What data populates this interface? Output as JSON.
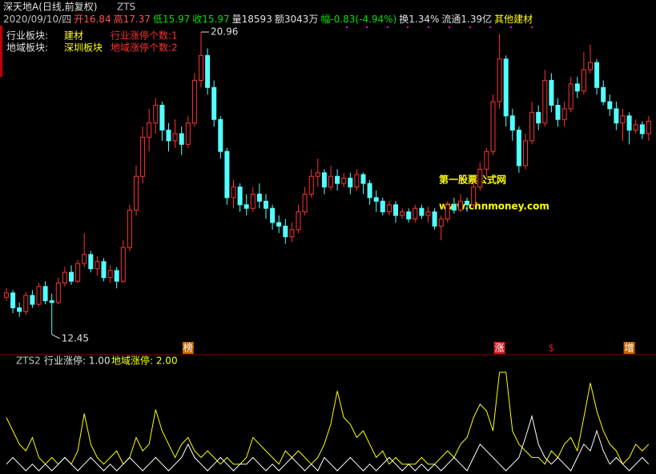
{
  "chart_data": [
    {
      "type": "candlestick",
      "title": "深天地A(日线,前复权)",
      "subtitle": "ZTS",
      "info": [
        {
          "text": "2020/09/10/四",
          "color": "#c0c0c0"
        },
        {
          "text": "开16.84",
          "color": "#ff5050"
        },
        {
          "text": "高17.37",
          "color": "#ff5050"
        },
        {
          "text": "低15.97",
          "color": "#00e000"
        },
        {
          "text": "收15.97",
          "color": "#00e000"
        },
        {
          "text": "量18593",
          "color": "#e0e0e0"
        },
        {
          "text": "额3043万",
          "color": "#e0e0e0"
        },
        {
          "text": "幅-0.83(-4.94%)",
          "color": "#00e000"
        },
        {
          "text": "换1.34%",
          "color": "#e0e0e0"
        },
        {
          "text": "流通1.39亿",
          "color": "#e0e0e0"
        },
        {
          "text": "其他建材",
          "color": "#ffff00"
        }
      ],
      "rows": [
        [
          {
            "text": "行业板块:",
            "color": "#e0e0e0"
          },
          {
            "text": "建材",
            "color": "#ffff00"
          },
          {
            "text": "行业涨停个数:1",
            "color": "#ff3030"
          }
        ],
        [
          {
            "text": "地域板块:",
            "color": "#e0e0e0"
          },
          {
            "text": "深圳板块",
            "color": "#ffff00"
          },
          {
            "text": "地域涨停个数:2",
            "color": "#ff3030"
          }
        ]
      ],
      "watermark": [
        "第一股票公式网",
        "www.chnmoney.com"
      ],
      "markers": [
        {
          "text": "榜",
          "index": 28,
          "color": "#c86400"
        },
        {
          "text": "涨",
          "index": 76,
          "color": "#c82020"
        },
        {
          "text": "$",
          "index": 84,
          "color": "#c82020"
        },
        {
          "text": "增",
          "index": 96,
          "color": "#c86400"
        }
      ],
      "up_color": "#ff3232",
      "down_color": "#54ffff",
      "ylim": [
        11.95,
        21.14
      ],
      "open": [
        13.5,
        13.62,
        13.2,
        13.1,
        13.55,
        13.3,
        13.8,
        13.4,
        13.35,
        13.9,
        14.2,
        13.95,
        14.45,
        14.7,
        14.3,
        14.5,
        14.05,
        14.25,
        13.95,
        14.9,
        15.95,
        16.9,
        18.0,
        18.4,
        18.9,
        18.2,
        17.9,
        18.1,
        17.8,
        18.4,
        19.6,
        20.3,
        19.4,
        18.5,
        17.6,
        16.3,
        16.6,
        16.1,
        16.0,
        16.4,
        16.2,
        16.0,
        15.6,
        15.5,
        15.2,
        15.4,
        15.9,
        16.4,
        16.9,
        17.0,
        16.6,
        16.9,
        16.7,
        16.85,
        16.6,
        16.95,
        16.7,
        16.3,
        16.2,
        15.9,
        16.1,
        15.8,
        15.9,
        15.7,
        16.0,
        15.8,
        15.9,
        15.5,
        15.7,
        16.1,
        15.95,
        16.2,
        16.1,
        16.6,
        17.1,
        17.6,
        19.0,
        20.2,
        18.6,
        18.2,
        17.2,
        17.9,
        18.7,
        18.4,
        19.6,
        18.9,
        18.5,
        18.8,
        19.5,
        19.3,
        19.9,
        20.1,
        19.4,
        19.0,
        18.8,
        18.4,
        18.6,
        18.2,
        18.35,
        18.1
      ],
      "high": [
        13.75,
        13.7,
        13.35,
        13.65,
        13.7,
        13.9,
        13.95,
        13.6,
        14.05,
        14.35,
        14.4,
        14.55,
        15.3,
        14.8,
        14.65,
        14.6,
        14.4,
        14.35,
        15.1,
        16.1,
        17.2,
        18.3,
        18.8,
        19.1,
        19.0,
        18.4,
        18.5,
        18.3,
        18.6,
        19.8,
        20.96,
        20.5,
        19.6,
        18.6,
        17.7,
        16.8,
        16.7,
        16.4,
        16.6,
        16.7,
        16.4,
        16.1,
        15.8,
        15.7,
        15.6,
        16.1,
        16.6,
        17.1,
        17.4,
        17.1,
        17.2,
        17.1,
        17.0,
        17.0,
        17.1,
        17.0,
        16.8,
        16.5,
        16.3,
        16.2,
        16.2,
        16.0,
        16.0,
        16.1,
        16.1,
        16.05,
        16.0,
        15.8,
        16.2,
        16.3,
        16.4,
        16.3,
        16.8,
        17.3,
        17.7,
        19.2,
        20.9,
        20.3,
        18.8,
        18.3,
        18.1,
        19.0,
        18.9,
        19.9,
        19.8,
        19.1,
        19.0,
        19.7,
        19.7,
        20.4,
        20.6,
        20.2,
        19.6,
        19.2,
        19.0,
        18.8,
        18.7,
        18.5,
        18.45,
        18.6
      ],
      "low": [
        13.4,
        13.05,
        12.95,
        13.0,
        13.2,
        13.25,
        13.3,
        12.45,
        13.3,
        13.8,
        13.85,
        13.9,
        14.35,
        14.2,
        14.1,
        13.95,
        13.9,
        13.75,
        13.9,
        14.8,
        15.8,
        16.7,
        17.6,
        18.1,
        17.9,
        17.6,
        17.7,
        17.5,
        17.7,
        18.3,
        19.4,
        19.2,
        18.3,
        17.4,
        16.1,
        16.0,
        15.9,
        15.8,
        15.9,
        16.0,
        15.7,
        15.4,
        15.3,
        15.0,
        15.05,
        15.3,
        15.8,
        16.3,
        16.6,
        16.4,
        16.5,
        16.5,
        16.6,
        16.4,
        16.5,
        16.4,
        16.1,
        15.9,
        15.8,
        15.8,
        15.6,
        15.7,
        15.6,
        15.6,
        15.7,
        15.6,
        15.4,
        15.1,
        15.6,
        15.85,
        15.9,
        15.9,
        16.0,
        16.5,
        16.9,
        17.5,
        18.8,
        18.3,
        17.9,
        17.0,
        17.1,
        17.8,
        18.2,
        18.3,
        18.7,
        18.3,
        18.3,
        18.7,
        19.1,
        19.2,
        19.8,
        19.2,
        18.9,
        18.6,
        18.2,
        17.9,
        17.8,
        18.1,
        17.95,
        17.9
      ],
      "close": [
        13.62,
        13.2,
        13.1,
        13.55,
        13.3,
        13.8,
        13.4,
        13.35,
        13.9,
        14.2,
        13.95,
        14.45,
        14.7,
        14.3,
        14.5,
        14.05,
        14.25,
        13.95,
        14.9,
        15.95,
        16.9,
        18.0,
        18.4,
        18.9,
        18.2,
        17.9,
        18.1,
        17.8,
        18.4,
        19.6,
        20.3,
        19.4,
        18.5,
        17.6,
        16.3,
        16.6,
        16.1,
        16.0,
        16.4,
        16.2,
        16.0,
        15.6,
        15.5,
        15.2,
        15.4,
        15.9,
        16.4,
        16.9,
        17.0,
        16.6,
        16.9,
        16.7,
        16.85,
        16.6,
        16.95,
        16.7,
        16.3,
        16.2,
        15.9,
        16.1,
        15.8,
        15.9,
        15.7,
        16.0,
        15.8,
        15.9,
        15.5,
        15.7,
        16.1,
        15.95,
        16.2,
        16.1,
        16.6,
        17.1,
        17.6,
        19.0,
        20.2,
        18.6,
        18.2,
        17.2,
        17.9,
        18.7,
        18.4,
        19.6,
        18.9,
        18.5,
        18.8,
        19.5,
        19.3,
        19.9,
        20.1,
        19.4,
        19.0,
        18.8,
        18.4,
        18.6,
        18.2,
        18.35,
        18.1,
        18.45
      ]
    },
    {
      "type": "line",
      "title": "ZTS2",
      "legend": [
        {
          "text": "行业涨停: 1.00",
          "color": "#e0e0e0"
        },
        {
          "text": "地域涨停: 2.00",
          "color": "#ffff00"
        }
      ],
      "ylim": [
        0,
        8
      ],
      "series": [
        {
          "color": "#ffff00",
          "values": [
            4.0,
            3.0,
            2.0,
            1.5,
            2.5,
            1.0,
            0.5,
            1.0,
            0.5,
            1.0,
            0.5,
            1.5,
            4.3,
            2.0,
            1.0,
            0.5,
            1.0,
            1.5,
            0.5,
            1.0,
            2.5,
            1.5,
            2.0,
            4.6,
            3.0,
            2.0,
            1.0,
            2.0,
            2.5,
            1.5,
            1.0,
            1.5,
            1.0,
            0.5,
            1.0,
            0.5,
            0.5,
            1.0,
            2.5,
            2.0,
            1.5,
            1.0,
            0.5,
            1.5,
            1.0,
            1.5,
            1.0,
            0.5,
            1.0,
            2.0,
            3.5,
            6.0,
            4.0,
            3.5,
            2.5,
            3.0,
            2.0,
            1.0,
            1.5,
            0.5,
            1.0,
            0.5,
            0.5,
            0.5,
            1.0,
            0.5,
            0.5,
            1.0,
            1.5,
            1.0,
            2.0,
            2.5,
            4.0,
            5.0,
            4.5,
            3.0,
            7.4,
            7.4,
            3.0,
            2.0,
            1.5,
            1.0,
            1.0,
            0.5,
            1.5,
            1.0,
            2.0,
            2.5,
            1.5,
            4.0,
            6.6,
            4.5,
            3.0,
            2.0,
            1.5,
            0.5,
            1.0,
            2.0,
            1.5,
            2.0
          ]
        },
        {
          "color": "#ffffff",
          "values": [
            0.5,
            1.0,
            0.5,
            0,
            0.5,
            0,
            0.5,
            0,
            0.5,
            1.0,
            0.5,
            0,
            0.5,
            1.0,
            0.5,
            0,
            0.5,
            0,
            0.5,
            1.0,
            0.5,
            0,
            0.5,
            1.0,
            0.5,
            0,
            0.5,
            1.0,
            2.0,
            1.0,
            0.5,
            0,
            0.5,
            1.0,
            0.5,
            0,
            0.5,
            0.5,
            1.0,
            0.5,
            0,
            0.5,
            0,
            0.5,
            1.0,
            0.5,
            0,
            0.5,
            0,
            1.0,
            0.5,
            0,
            0.5,
            1.0,
            0.5,
            0,
            0.5,
            0,
            0.5,
            1.0,
            0.5,
            0,
            0.5,
            0,
            0.5,
            0,
            0.5,
            0,
            0.5,
            1.0,
            0.5,
            0,
            1.0,
            2.0,
            1.5,
            1.0,
            0.5,
            0,
            0.5,
            1.0,
            2.5,
            4.1,
            2.0,
            1.0,
            0.5,
            1.0,
            0.5,
            0,
            1.0,
            2.0,
            1.5,
            3.0,
            1.5,
            0.5,
            1.0,
            0.5,
            0,
            0.5,
            1.0,
            0.5
          ]
        }
      ]
    }
  ]
}
